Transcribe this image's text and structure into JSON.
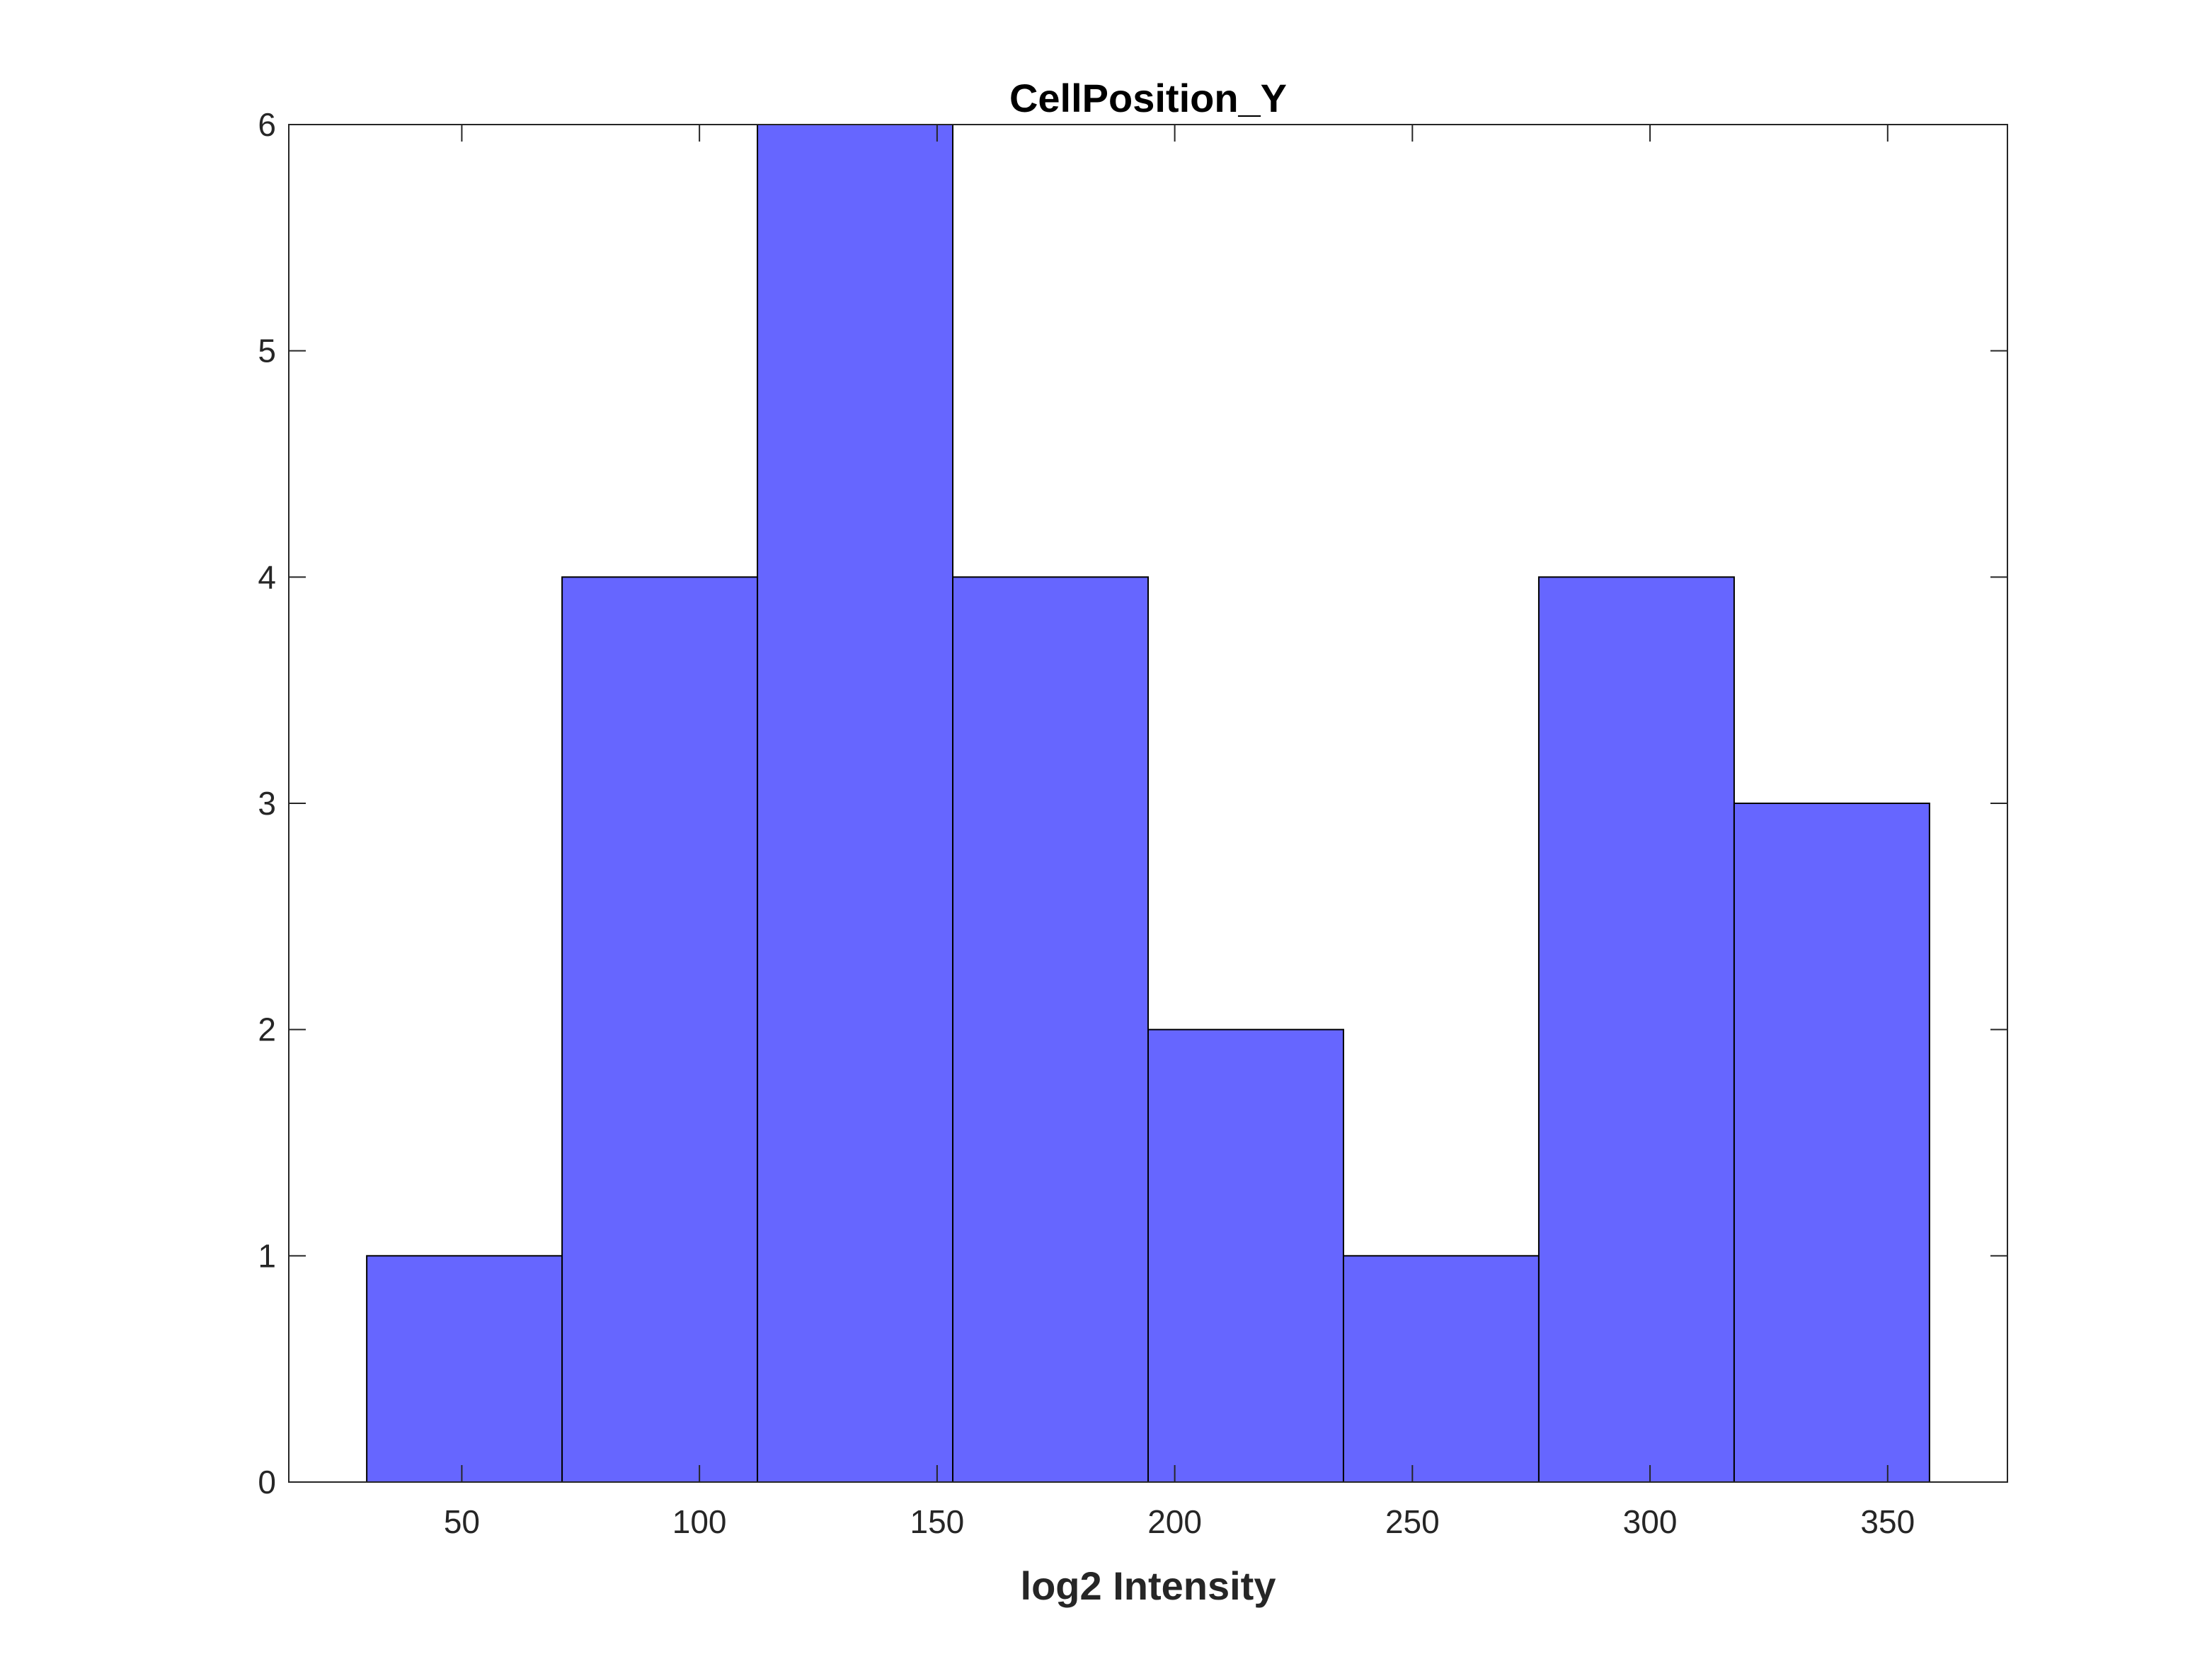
{
  "chart_data": {
    "type": "bar",
    "subtype": "histogram",
    "title": "CellPosition_Y",
    "xlabel": "log2 Intensity",
    "ylabel": "",
    "bins": [
      {
        "start": 30.0,
        "end": 71.1,
        "count": 1
      },
      {
        "start": 71.1,
        "end": 112.2,
        "count": 4
      },
      {
        "start": 112.2,
        "end": 153.3,
        "count": 6
      },
      {
        "start": 153.3,
        "end": 194.4,
        "count": 4
      },
      {
        "start": 194.4,
        "end": 235.5,
        "count": 2
      },
      {
        "start": 235.5,
        "end": 276.6,
        "count": 1
      },
      {
        "start": 276.6,
        "end": 317.7,
        "count": 4
      },
      {
        "start": 317.7,
        "end": 358.8,
        "count": 3
      }
    ],
    "xlim": [
      13.6,
      375.2
    ],
    "ylim": [
      0,
      6
    ],
    "xticks": [
      50,
      100,
      150,
      200,
      250,
      300,
      350
    ],
    "yticks": [
      0,
      1,
      2,
      3,
      4,
      5,
      6
    ],
    "grid": false,
    "bar_color": "#6666ff",
    "edge_color": "#000000"
  }
}
